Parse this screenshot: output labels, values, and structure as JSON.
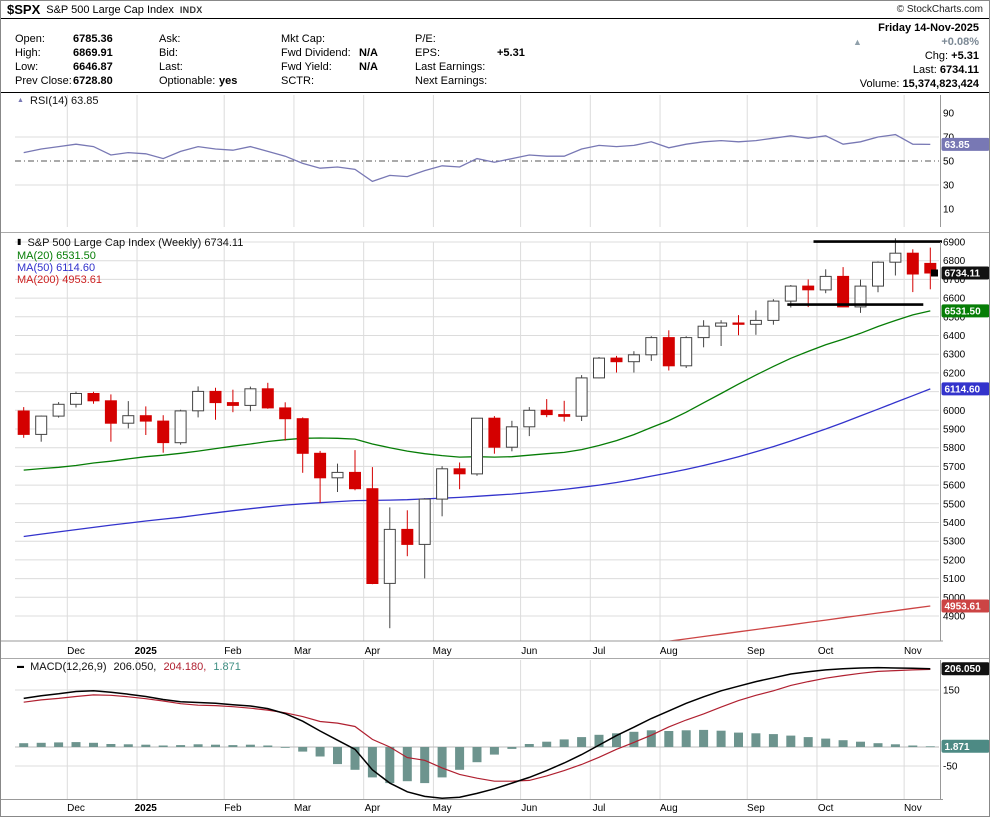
{
  "header": {
    "symbol": "$SPX",
    "name": "S&P 500 Large Cap Index",
    "exchange": "INDX",
    "copyright": "© StockCharts.com",
    "date": "Friday 14-Nov-2025",
    "quote": {
      "columns": [
        [
          [
            "Open:",
            "6785.36"
          ],
          [
            "High:",
            "6869.91"
          ],
          [
            "Low:",
            "6646.87"
          ],
          [
            "Prev Close:",
            "6728.80"
          ]
        ],
        [
          [
            "Ask:",
            ""
          ],
          [
            "Bid:",
            ""
          ],
          [
            "Last:",
            ""
          ],
          [
            "Optionable:",
            "yes"
          ]
        ],
        [
          [
            "Mkt Cap:",
            ""
          ],
          [
            "Fwd Dividend:",
            "N/A"
          ],
          [
            "Fwd Yield:",
            "N/A"
          ],
          [
            "SCTR:",
            ""
          ]
        ],
        [
          [
            "P/E:",
            ""
          ],
          [
            "EPS:",
            "+5.31"
          ],
          [
            "Last Earnings:",
            ""
          ],
          [
            "Next Earnings:",
            ""
          ]
        ]
      ],
      "change_pct": "+0.08%",
      "chg_label": "Chg:",
      "chg": "+5.31",
      "last_label": "Last:",
      "last": "6734.11",
      "volume_label": "Volume:",
      "volume": "15,374,823,424"
    }
  },
  "chart_data": {
    "type": "candlestick",
    "timeframe": "Weekly",
    "x_count": 53,
    "months": [
      {
        "label": "Dec",
        "i": 3
      },
      {
        "label": "2025",
        "i": 7,
        "bold": true
      },
      {
        "label": "Feb",
        "i": 12
      },
      {
        "label": "Mar",
        "i": 16
      },
      {
        "label": "Apr",
        "i": 20
      },
      {
        "label": "May",
        "i": 24
      },
      {
        "label": "Jun",
        "i": 29
      },
      {
        "label": "Jul",
        "i": 33
      },
      {
        "label": "Aug",
        "i": 37
      },
      {
        "label": "Sep",
        "i": 42
      },
      {
        "label": "Oct",
        "i": 46
      },
      {
        "label": "Nov",
        "i": 51
      }
    ],
    "colors": {
      "grid": "#dcdcdc",
      "rsi_line": "#7878b4",
      "candle_down": "#d40000",
      "candle_up_fill": "#ffffff",
      "candle_up_stroke": "#444444",
      "ma20": "#067d06",
      "ma50": "#3333cc",
      "ma200": "#cc4444",
      "macd_line": "#000000",
      "signal_line": "#b02030",
      "hist": "#6d948e",
      "annotation": "#000000"
    },
    "rsi": {
      "label": "RSI(14) 63.85",
      "axis_labels": [
        90,
        70,
        50,
        30,
        10
      ],
      "badge": {
        "text": "63.85",
        "value": 63.85,
        "color": "#7878b4"
      },
      "values": [
        57,
        60,
        62,
        64,
        62,
        55,
        57,
        56,
        52,
        58,
        62,
        60,
        59,
        62,
        58,
        54,
        48,
        44,
        45,
        43,
        33,
        38,
        37,
        42,
        46,
        45,
        52,
        49,
        52,
        55,
        54,
        54,
        60,
        63,
        62,
        63,
        66,
        61,
        64,
        66,
        67,
        66,
        67,
        69,
        71,
        69,
        71,
        64,
        66,
        70,
        72,
        64,
        63.85
      ]
    },
    "price": {
      "label": "S&P 500 Large Cap Index (Weekly) 6734.11",
      "last": 6734.11,
      "axis_min": 4900,
      "axis_max": 6900,
      "axis_step": 100,
      "candles": [
        [
          5996,
          6017,
          5853,
          5871
        ],
        [
          5871,
          5972,
          5832,
          5969
        ],
        [
          5969,
          6044,
          5961,
          6032
        ],
        [
          6032,
          6100,
          6015,
          6090
        ],
        [
          6090,
          6099,
          6035,
          6051
        ],
        [
          6051,
          6085,
          5832,
          5931
        ],
        [
          5931,
          6049,
          5903,
          5971
        ],
        [
          5971,
          6021,
          5868,
          5942
        ],
        [
          5942,
          5974,
          5773,
          5827
        ],
        [
          5827,
          6003,
          5816,
          5997
        ],
        [
          5997,
          6128,
          5962,
          6101
        ],
        [
          6101,
          6121,
          5949,
          6041
        ],
        [
          6041,
          6110,
          5990,
          6026
        ],
        [
          6026,
          6127,
          5995,
          6115
        ],
        [
          6115,
          6147,
          6008,
          6013
        ],
        [
          6013,
          6043,
          5838,
          5955
        ],
        [
          5955,
          5962,
          5666,
          5770
        ],
        [
          5770,
          5783,
          5505,
          5639
        ],
        [
          5639,
          5715,
          5563,
          5668
        ],
        [
          5668,
          5787,
          5572,
          5581
        ],
        [
          5581,
          5696,
          5070,
          5074
        ],
        [
          5074,
          5481,
          4835,
          5363
        ],
        [
          5363,
          5465,
          5220,
          5283
        ],
        [
          5283,
          5530,
          5101,
          5525
        ],
        [
          5525,
          5701,
          5433,
          5687
        ],
        [
          5687,
          5721,
          5578,
          5660
        ],
        [
          5660,
          5959,
          5650,
          5958
        ],
        [
          5958,
          5969,
          5768,
          5803
        ],
        [
          5803,
          5944,
          5781,
          5912
        ],
        [
          5912,
          6017,
          5862,
          6000
        ],
        [
          6000,
          6060,
          5963,
          5977
        ],
        [
          5977,
          6051,
          5940,
          5968
        ],
        [
          5968,
          6188,
          5943,
          6173
        ],
        [
          6173,
          6285,
          6171,
          6279
        ],
        [
          6279,
          6291,
          6202,
          6260
        ],
        [
          6260,
          6316,
          6202,
          6297
        ],
        [
          6297,
          6396,
          6264,
          6389
        ],
        [
          6389,
          6428,
          6213,
          6238
        ],
        [
          6238,
          6396,
          6226,
          6389
        ],
        [
          6389,
          6482,
          6337,
          6450
        ],
        [
          6450,
          6482,
          6344,
          6467
        ],
        [
          6467,
          6509,
          6401,
          6460
        ],
        [
          6460,
          6534,
          6404,
          6481
        ],
        [
          6481,
          6594,
          6458,
          6584
        ],
        [
          6584,
          6670,
          6550,
          6664
        ],
        [
          6664,
          6700,
          6552,
          6644
        ],
        [
          6644,
          6754,
          6626,
          6716
        ],
        [
          6716,
          6766,
          6552,
          6553
        ],
        [
          6553,
          6699,
          6521,
          6664
        ],
        [
          6664,
          6796,
          6631,
          6792
        ],
        [
          6792,
          6920,
          6721,
          6840
        ],
        [
          6840,
          6861,
          6632,
          6728.8
        ],
        [
          6785.36,
          6869.91,
          6646.87,
          6734.11
        ]
      ],
      "ma20": {
        "label": "MA(20) 6531.50",
        "last": 6531.5,
        "values": [
          5680,
          5688,
          5695,
          5705,
          5718,
          5728,
          5740,
          5752,
          5760,
          5770,
          5782,
          5795,
          5808,
          5820,
          5833,
          5843,
          5850,
          5852,
          5850,
          5846,
          5820,
          5800,
          5782,
          5768,
          5758,
          5750,
          5752,
          5750,
          5752,
          5760,
          5768,
          5775,
          5790,
          5812,
          5838,
          5870,
          5908,
          5945,
          5990,
          6040,
          6090,
          6140,
          6188,
          6235,
          6278,
          6315,
          6350,
          6380,
          6412,
          6448,
          6480,
          6510,
          6531.5
        ]
      },
      "ma50": {
        "label": "MA(50) 6114.60",
        "last": 6114.6,
        "values": [
          5325,
          5338,
          5350,
          5362,
          5374,
          5386,
          5397,
          5408,
          5418,
          5428,
          5440,
          5452,
          5463,
          5474,
          5484,
          5493,
          5500,
          5506,
          5512,
          5517,
          5518,
          5520,
          5522,
          5526,
          5530,
          5534,
          5540,
          5546,
          5552,
          5560,
          5568,
          5577,
          5588,
          5600,
          5614,
          5630,
          5648,
          5665,
          5684,
          5705,
          5728,
          5752,
          5778,
          5806,
          5836,
          5868,
          5900,
          5934,
          5970,
          6006,
          6042,
          6078,
          6114.6
        ]
      },
      "ma200": {
        "label": "MA(200) 4953.61",
        "last": 4953.61,
        "values": [
          4300.0,
          4312.6,
          4325.1,
          4337.7,
          4350.3,
          4362.9,
          4375.4,
          4388.0,
          4400.6,
          4413.1,
          4425.7,
          4438.3,
          4450.8,
          4463.4,
          4476.0,
          4488.6,
          4501.1,
          4513.7,
          4526.3,
          4538.8,
          4551.4,
          4564.0,
          4576.5,
          4589.1,
          4601.7,
          4614.3,
          4626.8,
          4639.4,
          4652.0,
          4664.5,
          4677.1,
          4689.7,
          4702.2,
          4714.8,
          4727.4,
          4740.0,
          4752.5,
          4765.1,
          4777.7,
          4790.2,
          4802.8,
          4815.4,
          4827.9,
          4840.5,
          4853.1,
          4865.7,
          4878.2,
          4890.8,
          4903.4,
          4915.9,
          4928.5,
          4941.1,
          4953.61
        ]
      },
      "annotations": [
        {
          "value": 6902,
          "from": 45.8,
          "to": 53.2
        },
        {
          "value": 6565,
          "from": 44.3,
          "to": 52.1
        }
      ],
      "badges": [
        {
          "text": "6734.11",
          "value": 6734.11,
          "color": "#111111"
        },
        {
          "text": "6531.50",
          "value": 6531.5,
          "color": "#067d06"
        },
        {
          "text": "6114.60",
          "value": 6114.6,
          "color": "#3333cc"
        },
        {
          "text": "4953.61",
          "value": 4953.61,
          "color": "#cc4444"
        }
      ]
    },
    "macd": {
      "name": "MACD(12,26,9)",
      "v_macd": "206.050,",
      "v_signal": "204.180,",
      "v_hist": "1.871",
      "axis_labels": [
        150,
        -50
      ],
      "macd": [
        128,
        135,
        140,
        146,
        148,
        144,
        139,
        133,
        125,
        119,
        117,
        115,
        111,
        108,
        101,
        88,
        68,
        42,
        18,
        -6,
        -60,
        -95,
        -118,
        -130,
        -135,
        -132,
        -122,
        -110,
        -95,
        -80,
        -62,
        -42,
        -20,
        5,
        30,
        52,
        75,
        95,
        115,
        132,
        148,
        160,
        172,
        182,
        192,
        198,
        203,
        206,
        208,
        209,
        208,
        207,
        206.05
      ],
      "signal": [
        118,
        124,
        128,
        133,
        137,
        136,
        132,
        127,
        121,
        114,
        110,
        109,
        106,
        102,
        97,
        90,
        80,
        67,
        63,
        54,
        20,
        0,
        -28,
        -35,
        -55,
        -72,
        -82,
        -90,
        -90,
        -88,
        -76,
        -62,
        -46,
        -27,
        -6,
        12,
        31,
        53,
        71,
        87,
        105,
        122,
        136,
        148,
        162,
        172,
        181,
        188,
        194,
        199,
        201,
        203,
        204.179
      ],
      "hist": [
        10,
        11,
        12,
        13,
        11,
        8,
        7,
        6,
        4,
        5,
        7,
        6,
        5,
        6,
        4,
        -2,
        -12,
        -25,
        -45,
        -60,
        -80,
        -95,
        -90,
        -95,
        -80,
        -60,
        -40,
        -20,
        -5,
        8,
        14,
        20,
        26,
        32,
        36,
        40,
        44,
        42,
        44,
        45,
        43,
        38,
        36,
        34,
        30,
        26,
        22,
        18,
        14,
        10,
        7,
        4,
        1.871
      ],
      "badges": [
        {
          "text": "206.050",
          "value": 206.05,
          "color": "#111111"
        },
        {
          "text": "1.871",
          "value": 1.871,
          "color": "#4d8a84"
        }
      ]
    }
  }
}
